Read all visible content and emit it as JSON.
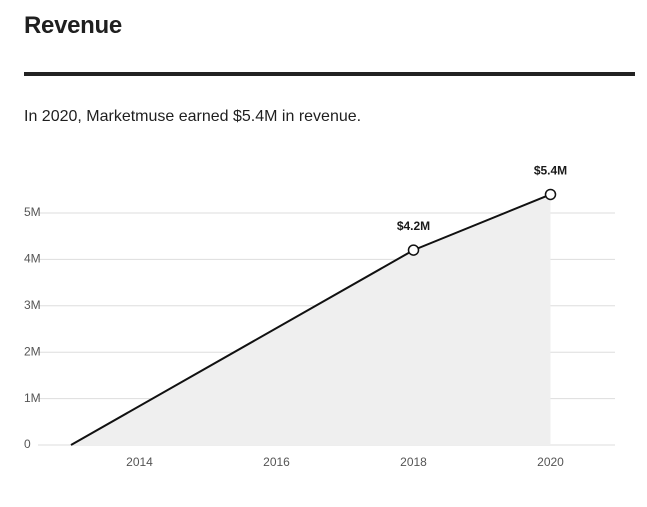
{
  "header": {
    "title": "Revenue",
    "summary": "In 2020, Marketmuse earned $5.4M in revenue."
  },
  "chart_data": {
    "type": "area",
    "title": "",
    "xlabel": "",
    "ylabel": "",
    "x": [
      2013,
      2018,
      2020
    ],
    "values": [
      0,
      4.2,
      5.4
    ],
    "value_unit": "M",
    "data_labels": [
      null,
      "$4.2M",
      "$5.4M"
    ],
    "xlim": [
      2013,
      2021
    ],
    "ylim": [
      0,
      5
    ],
    "x_ticks": [
      2014,
      2016,
      2018,
      2020
    ],
    "x_tick_labels": [
      "2014",
      "2016",
      "2018",
      "2020"
    ],
    "y_ticks": [
      0,
      1,
      2,
      3,
      4,
      5
    ],
    "y_tick_labels": [
      "0",
      "1M",
      "2M",
      "3M",
      "4M",
      "5M"
    ],
    "grid": true,
    "legend": "none",
    "colors": {
      "line": "#111111",
      "fill": "#efefef",
      "grid": "#dddddd",
      "marker_fill": "#ffffff"
    }
  }
}
